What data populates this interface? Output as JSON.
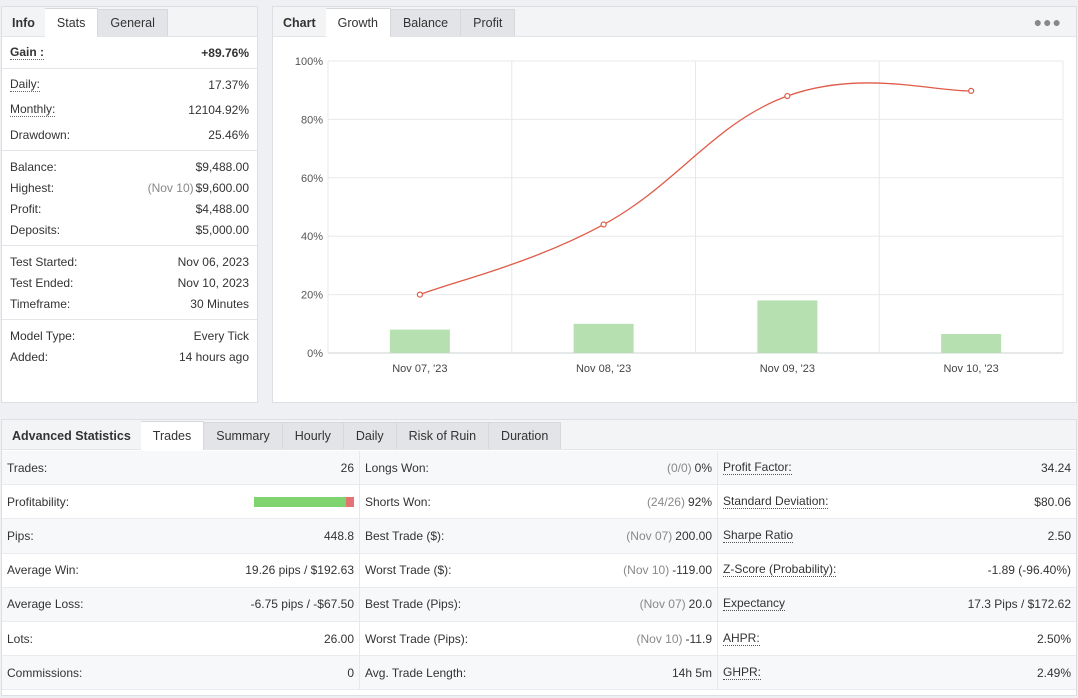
{
  "info_panel": {
    "tabs": [
      "Info",
      "Stats",
      "General"
    ],
    "rows": [
      {
        "label": "Gain :",
        "value": "+89.76%"
      },
      {
        "label": "Daily:",
        "value": "17.37%"
      },
      {
        "label": "Monthly:",
        "value": "12104.92%"
      },
      {
        "label": "Drawdown:",
        "value": "25.46%"
      },
      {
        "label": "Balance:",
        "value": "$9,488.00"
      },
      {
        "label": "Highest:",
        "note": "(Nov 10)",
        "value": "$9,600.00"
      },
      {
        "label": "Profit:",
        "value": "$4,488.00"
      },
      {
        "label": "Deposits:",
        "value": "$5,000.00"
      },
      {
        "label": "Test Started:",
        "value": "Nov 06, 2023"
      },
      {
        "label": "Test Ended:",
        "value": "Nov 10, 2023"
      },
      {
        "label": "Timeframe:",
        "value": "30 Minutes"
      },
      {
        "label": "Model Type:",
        "value": "Every Tick"
      },
      {
        "label": "Added:",
        "value": "14 hours ago"
      }
    ]
  },
  "chart_panel": {
    "tabs": [
      "Chart",
      "Growth",
      "Balance",
      "Profit"
    ],
    "menu_icon": "more-dots-icon"
  },
  "chart_data": {
    "type": "line",
    "categories": [
      "Nov 07, '23",
      "Nov 08, '23",
      "Nov 09, '23",
      "Nov 10, '23"
    ],
    "series": [
      {
        "values": [
          20,
          44,
          88,
          89.76
        ],
        "color": "#e05a47"
      }
    ],
    "bars": [
      {
        "values": [
          8,
          10,
          18,
          6.5
        ],
        "color": "#b6e0b0"
      }
    ],
    "yticks": [
      "0%",
      "20%",
      "40%",
      "60%",
      "80%",
      "100%"
    ],
    "ylim": [
      0,
      100
    ],
    "grid": true
  },
  "adv": {
    "tabs": [
      "Advanced Statistics",
      "Trades",
      "Summary",
      "Hourly",
      "Daily",
      "Risk of Ruin",
      "Duration"
    ],
    "col1": [
      {
        "label": "Trades:",
        "value": "26"
      },
      {
        "label": "Profitability:",
        "win_fraction": 0.92
      },
      {
        "label": "Pips:",
        "value": "448.8"
      },
      {
        "label": "Average Win:",
        "value": "19.26 pips / $192.63"
      },
      {
        "label": "Average Loss:",
        "value": "-6.75 pips / -$67.50"
      },
      {
        "label": "Lots:",
        "value": "26.00"
      },
      {
        "label": "Commissions:",
        "value": "0"
      }
    ],
    "col2": [
      {
        "label": "Longs Won:",
        "note": "(0/0)",
        "value": "0%"
      },
      {
        "label": "Shorts Won:",
        "note": "(24/26)",
        "value": "92%"
      },
      {
        "label": "Best Trade ($):",
        "note": "(Nov 07)",
        "value": "200.00"
      },
      {
        "label": "Worst Trade ($):",
        "note": "(Nov 10)",
        "value": "-119.00"
      },
      {
        "label": "Best Trade (Pips):",
        "note": "(Nov 07)",
        "value": "20.0"
      },
      {
        "label": "Worst Trade (Pips):",
        "note": "(Nov 10)",
        "value": "-11.9"
      },
      {
        "label": "Avg. Trade Length:",
        "value": "14h 5m"
      }
    ],
    "col3": [
      {
        "label": "Profit Factor:",
        "value": "34.24"
      },
      {
        "label": "Standard Deviation:",
        "value": "$80.06"
      },
      {
        "label": "Sharpe Ratio",
        "value": "2.50"
      },
      {
        "label": "Z-Score (Probability):",
        "value": "-1.89 (-96.40%)"
      },
      {
        "label": "Expectancy",
        "value": "17.3 Pips / $172.62"
      },
      {
        "label": "AHPR:",
        "value": "2.50%"
      },
      {
        "label": "GHPR:",
        "value": "2.49%"
      }
    ]
  }
}
